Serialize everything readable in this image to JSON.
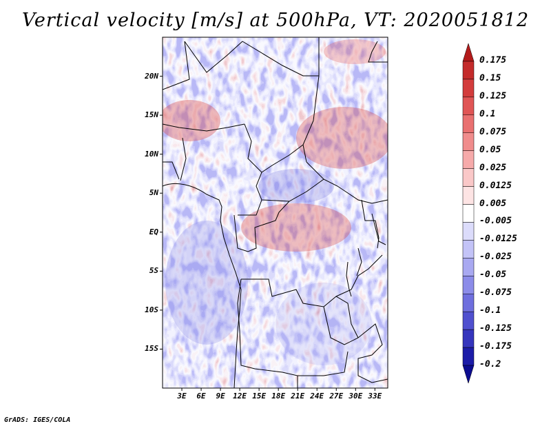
{
  "title": "Vertical velocity [m/s] at 500hPa, VT: 2020051812",
  "footer": "GrADS: IGES/COLA",
  "map": {
    "lat_range": [
      -20,
      25
    ],
    "lon_range": [
      0,
      35
    ],
    "lat_labels": [
      "20N",
      "15N",
      "10N",
      "5N",
      "EQ",
      "5S",
      "10S",
      "15S"
    ],
    "lat_values": [
      20,
      15,
      10,
      5,
      0,
      -5,
      -10,
      -15
    ],
    "lon_labels": [
      "3E",
      "6E",
      "9E",
      "12E",
      "15E",
      "18E",
      "21E",
      "24E",
      "27E",
      "30E",
      "33E"
    ],
    "lon_values": [
      3,
      6,
      9,
      12,
      15,
      18,
      21,
      24,
      27,
      30,
      33
    ]
  },
  "colorbar": {
    "levels": [
      "0.175",
      "0.15",
      "0.125",
      "0.1",
      "0.075",
      "0.05",
      "0.025",
      "0.0125",
      "0.005",
      "-0.005",
      "-0.0125",
      "-0.025",
      "-0.05",
      "-0.075",
      "-0.1",
      "-0.125",
      "-0.175",
      "-0.2"
    ],
    "colors": [
      "#b31b1b",
      "#c42b2b",
      "#d33c3c",
      "#e05555",
      "#e97070",
      "#f08c8c",
      "#f6aaaa",
      "#fac8c8",
      "#fde4e4",
      "#ffffff",
      "#dcdcfb",
      "#c3c3f7",
      "#a9a9f1",
      "#8c8ce9",
      "#6f6fde",
      "#5050cf",
      "#3535bd",
      "#1c1ca8",
      "#0c0c90"
    ]
  }
}
